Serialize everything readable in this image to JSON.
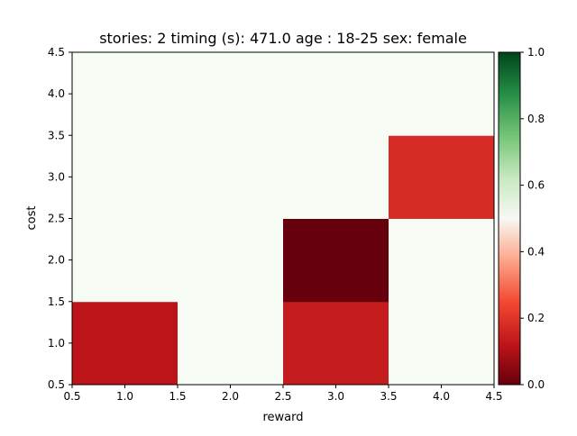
{
  "chart_data": {
    "type": "heatmap",
    "title": "stories: 2 timing (s): 471.0 age : 18-25 sex: female",
    "xlabel": "reward",
    "ylabel": "cost",
    "xlim": [
      0.5,
      4.5
    ],
    "ylim": [
      0.5,
      4.5
    ],
    "x_ticks": [
      "0.5",
      "1.0",
      "1.5",
      "2.0",
      "2.5",
      "3.0",
      "3.5",
      "4.0",
      "4.5"
    ],
    "y_ticks": [
      "0.5",
      "1.0",
      "1.5",
      "2.0",
      "2.5",
      "3.0",
      "3.5",
      "4.0",
      "4.5"
    ],
    "x": [
      1,
      2,
      3,
      4
    ],
    "y": [
      1,
      2,
      3,
      4
    ],
    "values": [
      [
        0.12,
        0.5,
        0.14,
        0.5
      ],
      [
        0.5,
        0.5,
        0.0,
        0.5
      ],
      [
        0.5,
        0.5,
        0.5,
        0.18
      ],
      [
        0.5,
        0.5,
        0.5,
        0.5
      ]
    ],
    "colormap": "RdYlGn-style (Red to White to Green)",
    "colorbar": {
      "min": 0.0,
      "max": 1.0,
      "ticks": [
        "0.0",
        "0.2",
        "0.4",
        "0.6",
        "0.8",
        "1.0"
      ]
    },
    "grid": false
  }
}
